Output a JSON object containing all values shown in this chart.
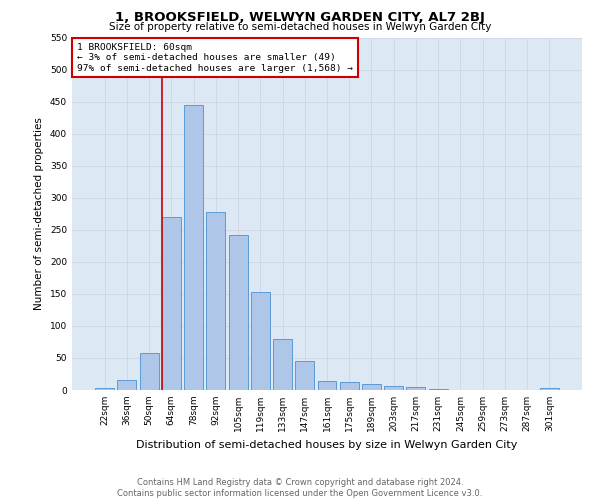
{
  "title": "1, BROOKSFIELD, WELWYN GARDEN CITY, AL7 2BJ",
  "subtitle": "Size of property relative to semi-detached houses in Welwyn Garden City",
  "xlabel": "Distribution of semi-detached houses by size in Welwyn Garden City",
  "ylabel": "Number of semi-detached properties",
  "footer_line1": "Contains HM Land Registry data © Crown copyright and database right 2024.",
  "footer_line2": "Contains public sector information licensed under the Open Government Licence v3.0.",
  "bar_labels": [
    "22sqm",
    "36sqm",
    "50sqm",
    "64sqm",
    "78sqm",
    "92sqm",
    "105sqm",
    "119sqm",
    "133sqm",
    "147sqm",
    "161sqm",
    "175sqm",
    "189sqm",
    "203sqm",
    "217sqm",
    "231sqm",
    "245sqm",
    "259sqm",
    "273sqm",
    "287sqm",
    "301sqm"
  ],
  "bar_values": [
    3,
    15,
    58,
    270,
    445,
    278,
    242,
    153,
    79,
    45,
    14,
    13,
    9,
    6,
    4,
    2,
    0,
    0,
    0,
    0,
    3
  ],
  "bar_color": "#aec6e8",
  "bar_edge_color": "#5b9bd5",
  "annotation_box_color": "#cc0000",
  "subject_label": "1 BROOKSFIELD: 60sqm",
  "pct_smaller": 3,
  "count_smaller": 49,
  "pct_larger": 97,
  "count_larger": 1568,
  "ylim": [
    0,
    550
  ],
  "yticks": [
    0,
    50,
    100,
    150,
    200,
    250,
    300,
    350,
    400,
    450,
    500,
    550
  ],
  "grid_color": "#d0d8e8",
  "background_color": "#dde8f5",
  "title_fontsize": 9.5,
  "subtitle_fontsize": 7.5,
  "ylabel_fontsize": 7.5,
  "xlabel_fontsize": 8,
  "tick_fontsize": 6.5,
  "footer_fontsize": 6,
  "red_line_index": 2.57
}
